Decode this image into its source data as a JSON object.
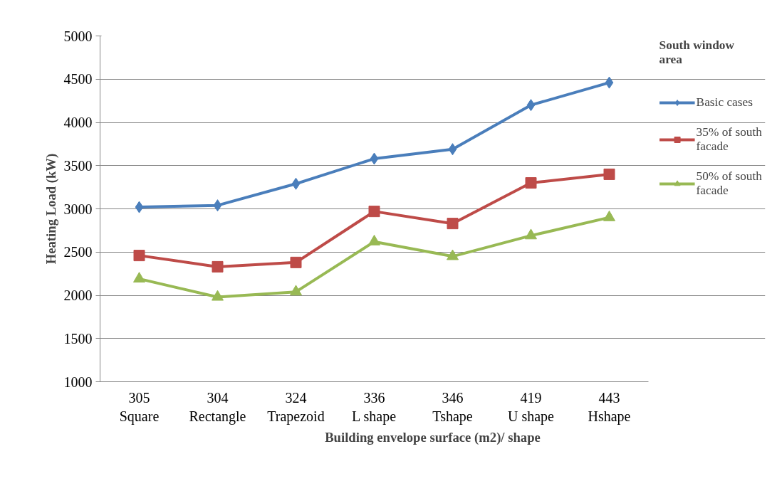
{
  "chart_data": {
    "type": "line",
    "xlabel": "Building envelope surface (m2)/ shape",
    "ylabel": "Heating Load (kW)",
    "legend_title": "South window area",
    "categories": [
      "305\nSquare",
      "304\nRectangle",
      "324\nTrapezoid",
      "336\nL shape",
      "346\nTshape",
      "419\nU shape",
      "443\nHshape"
    ],
    "series": [
      {
        "name": "Basic cases",
        "color": "#4a7ebb",
        "marker": "diamond",
        "values": [
          3020,
          3040,
          3290,
          3580,
          3690,
          4200,
          4460
        ]
      },
      {
        "name": "35% of south facade",
        "color": "#be4b48",
        "marker": "square",
        "values": [
          2460,
          2330,
          2380,
          2970,
          2830,
          3300,
          3400
        ]
      },
      {
        "name": "50% of south facade",
        "color": "#98b954",
        "marker": "triangle",
        "values": [
          2190,
          1980,
          2040,
          2620,
          2450,
          2690,
          2900
        ]
      }
    ],
    "ylim": [
      1000,
      5000
    ],
    "yticks": [
      1000,
      1500,
      2000,
      2500,
      3000,
      3500,
      4000,
      4500,
      5000
    ],
    "grid": "y",
    "legend": "right"
  }
}
